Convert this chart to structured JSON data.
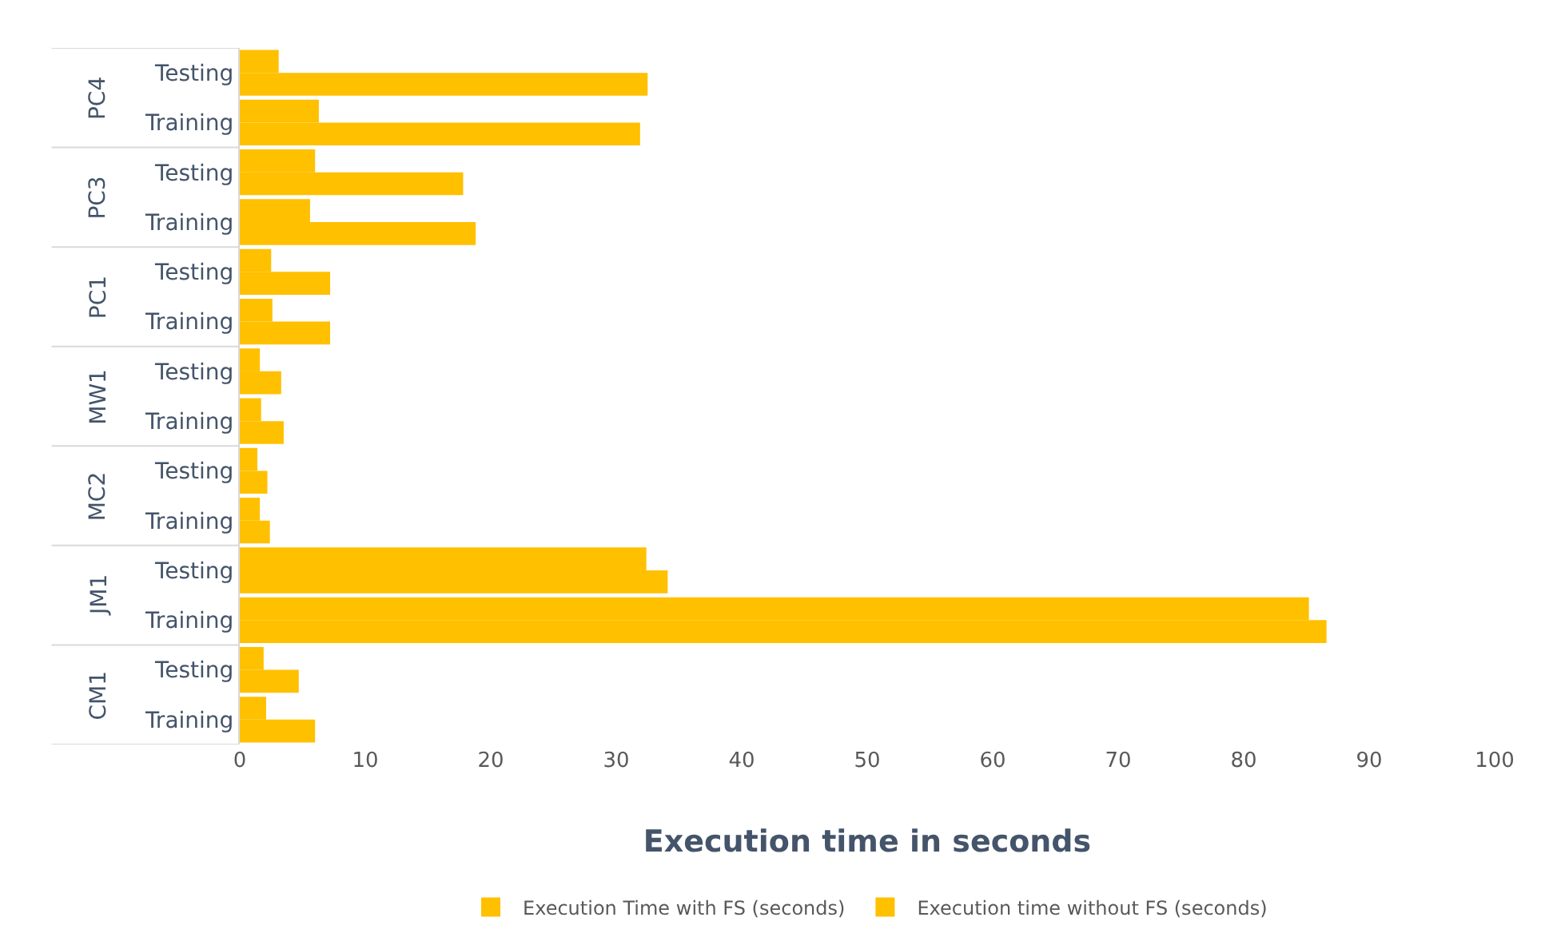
{
  "chart_data": {
    "type": "bar",
    "orientation": "horizontal",
    "xlabel": "Execution time in seconds",
    "categories": [
      "Testing",
      "Training",
      "Testing",
      "Training",
      "Testing",
      "Training",
      "Testing",
      "Training",
      "Testing",
      "Training",
      "Testing",
      "Training",
      "Testing",
      "Training"
    ],
    "annotations": [
      "PC4",
      "PC3",
      "PC1",
      "MW1",
      "MC2",
      "JM1",
      "CM1"
    ],
    "series": [
      {
        "name": "Execution Time with FS (seconds)",
        "color": "#ffc000",
        "values": [
          3.1,
          6.3,
          6.0,
          5.6,
          2.5,
          2.6,
          1.6,
          1.7,
          1.4,
          1.6,
          32.4,
          85.2,
          1.9,
          2.1
        ]
      },
      {
        "name": "Execution time without FS (seconds)",
        "color": "#ffc000",
        "values": [
          32.5,
          31.9,
          17.8,
          18.8,
          7.2,
          7.2,
          3.3,
          3.5,
          2.2,
          2.4,
          34.1,
          86.6,
          4.7,
          6.0
        ]
      }
    ],
    "xlim": [
      0,
      100
    ],
    "xticks": [
      0,
      10,
      20,
      30,
      40,
      50,
      60,
      70,
      80,
      90,
      100
    ],
    "grid": false,
    "legend": "bottom"
  }
}
